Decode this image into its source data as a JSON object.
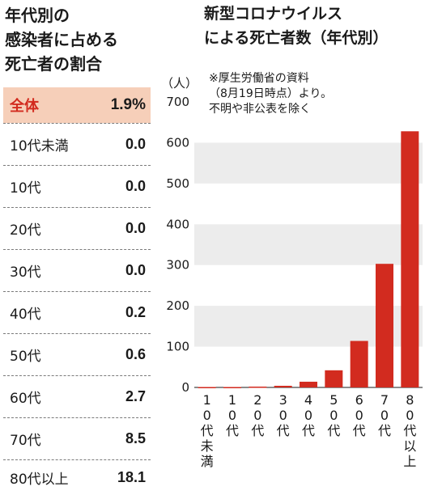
{
  "left_panel": {
    "title": "年代別の\n感染者に占める\n死亡者の割合",
    "rows": [
      {
        "label": "全体",
        "value": "1.9%"
      },
      {
        "label": "10代未満",
        "value": "0.0"
      },
      {
        "label": "10代",
        "value": "0.0"
      },
      {
        "label": "20代",
        "value": "0.0"
      },
      {
        "label": "30代",
        "value": "0.0"
      },
      {
        "label": "40代",
        "value": "0.2"
      },
      {
        "label": "50代",
        "value": "0.6"
      },
      {
        "label": "60代",
        "value": "2.7"
      },
      {
        "label": "70代",
        "value": "8.5"
      },
      {
        "label": "80代以上",
        "value": "18.1"
      }
    ]
  },
  "right_panel": {
    "title": "新型コロナウイルス\nによる死亡者数（年代別）",
    "note": "※厚生労働省の資料\n（8月19日時点）より。\n不明や非公表を除く"
  },
  "colors": {
    "accent": "#d22b1f",
    "highlight": "#f6cfb9",
    "band": "#ececec"
  },
  "chart_data": {
    "type": "bar",
    "unit_label": "（人）",
    "categories": [
      "10代未満",
      "10代",
      "20代",
      "30代",
      "40代",
      "50代",
      "60代",
      "70代",
      "80代以上"
    ],
    "values": [
      1,
      1,
      2,
      4,
      14,
      42,
      114,
      303,
      628
    ],
    "yticks": [
      0,
      100,
      200,
      300,
      400,
      500,
      600,
      700
    ],
    "ylim": [
      0,
      700
    ]
  }
}
